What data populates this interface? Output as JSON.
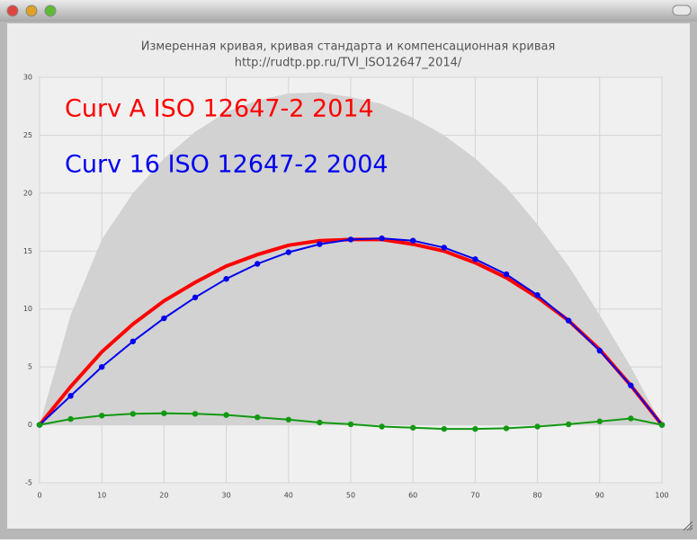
{
  "chart_data": {
    "type": "line",
    "title": "Измеренная кривая, кривая стандарта и компенсационная кривая",
    "subtitle": "http://rudtp.pp.ru/TVI_ISO12647_2014/",
    "x": [
      0,
      5,
      10,
      15,
      20,
      25,
      30,
      35,
      40,
      45,
      50,
      55,
      60,
      65,
      70,
      75,
      80,
      85,
      90,
      95,
      100
    ],
    "series": [
      {
        "kind": "area",
        "color": "#d2d2d2",
        "values": [
          0,
          9.5,
          16,
          20,
          23,
          25.3,
          27,
          28,
          28.6,
          28.7,
          28.3,
          27.7,
          26.5,
          25,
          23,
          20.5,
          17.3,
          13.7,
          9.5,
          5,
          0
        ]
      },
      {
        "name": "Curv A ISO 12647-2 2014",
        "color": "#ff0000",
        "width": 4,
        "values": [
          0,
          3.3,
          6.3,
          8.7,
          10.7,
          12.3,
          13.7,
          14.7,
          15.5,
          15.9,
          16.0,
          16.0,
          15.6,
          15.0,
          14.0,
          12.7,
          11.0,
          9.0,
          6.5,
          3.4,
          0
        ]
      },
      {
        "name": "Curv 16 ISO 12647-2 2004",
        "color": "#0000ee",
        "width": 2,
        "markers": true,
        "values": [
          0,
          2.5,
          5.0,
          7.2,
          9.2,
          11.0,
          12.6,
          13.9,
          14.9,
          15.6,
          16.0,
          16.1,
          15.9,
          15.3,
          14.3,
          13.0,
          11.2,
          9.0,
          6.4,
          3.4,
          0
        ]
      },
      {
        "color": "#119911",
        "width": 2,
        "markers": true,
        "values": [
          0,
          0.5,
          0.8,
          0.95,
          1.0,
          0.95,
          0.85,
          0.65,
          0.45,
          0.2,
          0.05,
          -0.15,
          -0.25,
          -0.35,
          -0.35,
          -0.3,
          -0.15,
          0.05,
          0.3,
          0.55,
          0
        ]
      }
    ],
    "xlim": [
      0,
      100
    ],
    "xticks": [
      0,
      10,
      20,
      30,
      40,
      50,
      60,
      70,
      80,
      90,
      100
    ],
    "ylim": [
      -5,
      30
    ],
    "yticks": [
      -5,
      0,
      5,
      10,
      15,
      20,
      25,
      30
    ],
    "grid": true
  }
}
